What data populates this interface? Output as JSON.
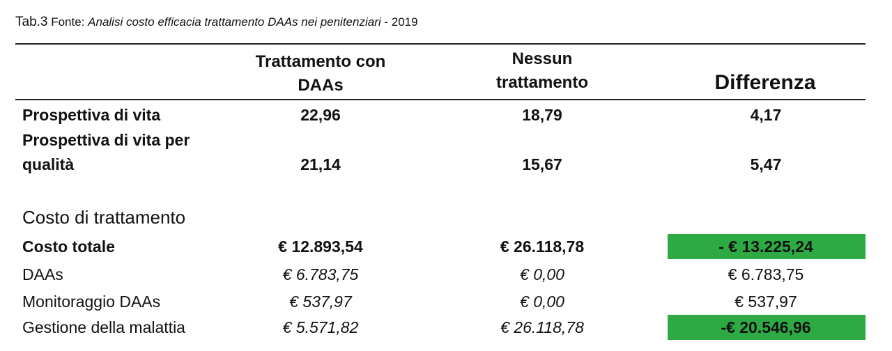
{
  "caption": {
    "table_no": "Tab.3",
    "source_label": "Fonte:",
    "source_title": "Analisi costo efficacia trattamento DAAs nei penitenziari",
    "year": "- 2019"
  },
  "columns": {
    "treatment_line1": "Trattamento con",
    "treatment_line2": "DAAs",
    "none_line1": "Nessun",
    "none_line2": "trattamento",
    "difference": "Differenza"
  },
  "rows": {
    "life": {
      "label": "Prospettiva di vita",
      "treatment": "22,96",
      "none": "18,79",
      "diff": "4,17"
    },
    "quality": {
      "label_line1": "Prospettiva di vita per",
      "label_line2": "qualità",
      "treatment": "21,14",
      "none": "15,67",
      "diff": "5,47"
    },
    "cost_section": "Costo di trattamento",
    "total": {
      "label": "Costo totale",
      "treatment": "€ 12.893,54",
      "none": "€ 26.118,78",
      "diff": "- € 13.225,24"
    },
    "daas": {
      "label": "DAAs",
      "treatment": "€ 6.783,75",
      "none": "€ 0,00",
      "diff": "€ 6.783,75"
    },
    "monitoring": {
      "label": "Monitoraggio DAAs",
      "treatment": "€ 537,97",
      "none": "€ 0,00",
      "diff": "€ 537,97"
    },
    "disease": {
      "label": "Gestione della malattia",
      "treatment": "€ 5.571,82",
      "none": "€ 26.118,78",
      "diff": "-€ 20.546,96"
    }
  },
  "colors": {
    "highlight": "#2eaa45"
  }
}
